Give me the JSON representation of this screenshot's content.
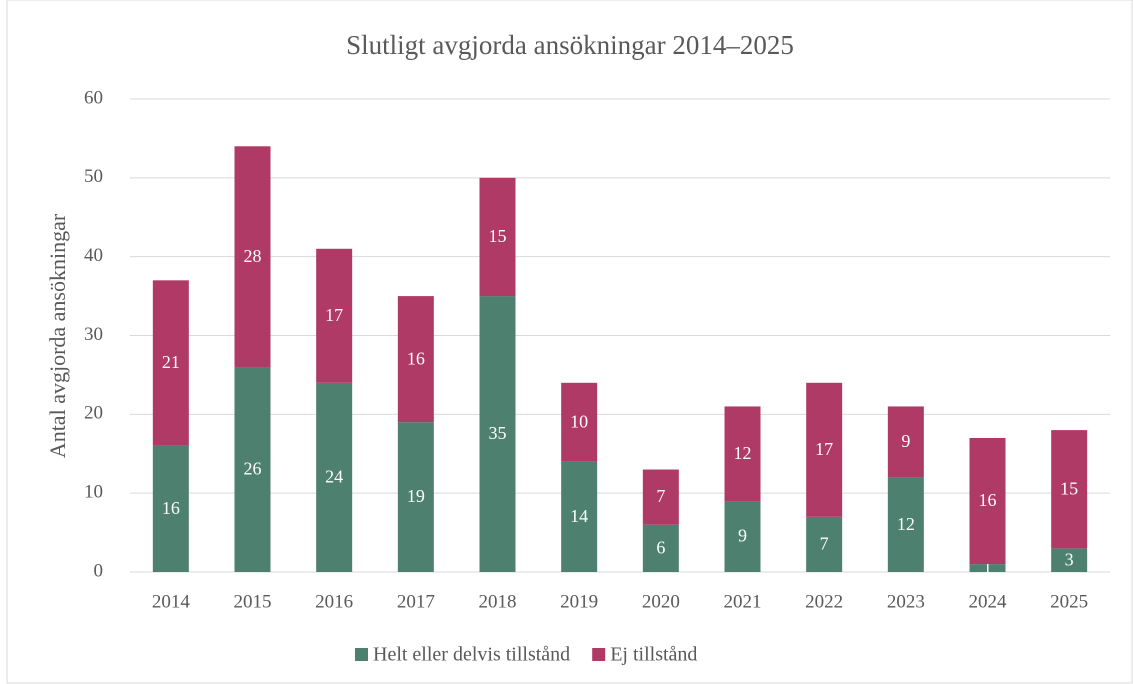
{
  "chart_data": {
    "type": "stacked_bar",
    "title": "Slutligt avgjorda ansökningar 2014–2025",
    "y_label": "Antal avgjorda ansökningar",
    "categories": [
      "2014",
      "2015",
      "2016",
      "2017",
      "2018",
      "2019",
      "2020",
      "2021",
      "2022",
      "2023",
      "2024",
      "2025"
    ],
    "series": [
      {
        "name": "Helt eller delvis tillstånd",
        "color": "#4e8070",
        "values": [
          16,
          26,
          24,
          19,
          35,
          14,
          6,
          9,
          7,
          12,
          1,
          3
        ]
      },
      {
        "name": "Ej tillstånd",
        "color": "#b03a66",
        "values": [
          21,
          28,
          17,
          16,
          15,
          10,
          7,
          12,
          17,
          9,
          16,
          15
        ]
      }
    ],
    "ylim": [
      0,
      60
    ],
    "yticks": [
      0,
      10,
      20,
      30,
      40,
      50,
      60
    ],
    "grid": true,
    "legend": "bottom"
  }
}
